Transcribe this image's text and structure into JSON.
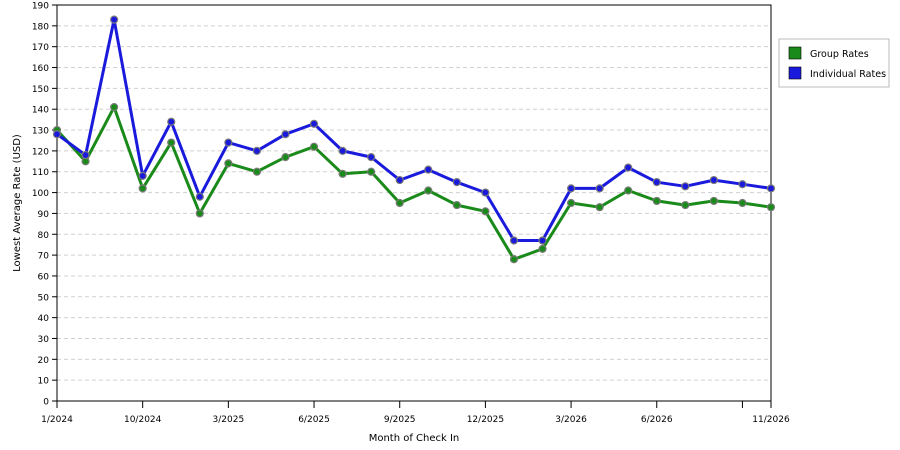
{
  "chart_data": {
    "type": "line",
    "title": "",
    "xlabel": "Month of Check In",
    "ylabel": "Lowest Average Rate (USD)",
    "ylim": [
      0,
      190
    ],
    "y_ticks": [
      0,
      10,
      20,
      30,
      40,
      50,
      60,
      70,
      80,
      90,
      100,
      110,
      120,
      130,
      140,
      150,
      160,
      170,
      180,
      190
    ],
    "grid": true,
    "legend_position": "top-right",
    "x_index_range": [
      0,
      25
    ],
    "x_tick_labels": [
      {
        "index": 0,
        "label": "1/2024"
      },
      {
        "index": 3,
        "label": "10/2024"
      },
      {
        "index": 6,
        "label": "3/2025"
      },
      {
        "index": 9,
        "label": "6/2025"
      },
      {
        "index": 12,
        "label": "9/2025"
      },
      {
        "index": 15,
        "label": "12/2025"
      },
      {
        "index": 18,
        "label": "3/2026"
      },
      {
        "index": 21,
        "label": "6/2026"
      },
      {
        "index": 25,
        "label": "11/2026"
      }
    ],
    "x_tick_marks": [
      0,
      3,
      6,
      9,
      12,
      15,
      18,
      21,
      24,
      25
    ],
    "series": [
      {
        "name": "Group Rates",
        "color": "#1a8a1a",
        "points": [
          {
            "x": 0,
            "y": 130
          },
          {
            "x": 1,
            "y": 115
          },
          {
            "x": 2,
            "y": 141
          },
          {
            "x": 3,
            "y": 102
          },
          {
            "x": 4,
            "y": 124
          },
          {
            "x": 5,
            "y": 90
          },
          {
            "x": 6,
            "y": 114
          },
          {
            "x": 7,
            "y": 110
          },
          {
            "x": 8,
            "y": 117
          },
          {
            "x": 9,
            "y": 122
          },
          {
            "x": 10,
            "y": 109
          },
          {
            "x": 11,
            "y": 110
          },
          {
            "x": 12,
            "y": 95
          },
          {
            "x": 13,
            "y": 101
          },
          {
            "x": 14,
            "y": 94
          },
          {
            "x": 15,
            "y": 91
          },
          {
            "x": 16,
            "y": 68
          },
          {
            "x": 17,
            "y": 73
          },
          {
            "x": 18,
            "y": 95
          },
          {
            "x": 19,
            "y": 93
          },
          {
            "x": 20,
            "y": 101
          },
          {
            "x": 21,
            "y": 96
          },
          {
            "x": 22,
            "y": 94
          },
          {
            "x": 23,
            "y": 96
          },
          {
            "x": 24,
            "y": 95
          },
          {
            "x": 25,
            "y": 93
          }
        ]
      },
      {
        "name": "Individual Rates",
        "color": "#1a1adc",
        "points": [
          {
            "x": 0,
            "y": 128
          },
          {
            "x": 1,
            "y": 118
          },
          {
            "x": 2,
            "y": 183
          },
          {
            "x": 3,
            "y": 108
          },
          {
            "x": 4,
            "y": 134
          },
          {
            "x": 5,
            "y": 98
          },
          {
            "x": 6,
            "y": 124
          },
          {
            "x": 7,
            "y": 120
          },
          {
            "x": 8,
            "y": 128
          },
          {
            "x": 9,
            "y": 133
          },
          {
            "x": 10,
            "y": 120
          },
          {
            "x": 11,
            "y": 117
          },
          {
            "x": 12,
            "y": 106
          },
          {
            "x": 13,
            "y": 111
          },
          {
            "x": 14,
            "y": 105
          },
          {
            "x": 15,
            "y": 100
          },
          {
            "x": 16,
            "y": 77
          },
          {
            "x": 17,
            "y": 77
          },
          {
            "x": 18,
            "y": 102
          },
          {
            "x": 19,
            "y": 102
          },
          {
            "x": 20,
            "y": 112
          },
          {
            "x": 21,
            "y": 105
          },
          {
            "x": 22,
            "y": 103
          },
          {
            "x": 23,
            "y": 106
          },
          {
            "x": 24,
            "y": 104
          },
          {
            "x": 25,
            "y": 102
          }
        ]
      }
    ]
  }
}
